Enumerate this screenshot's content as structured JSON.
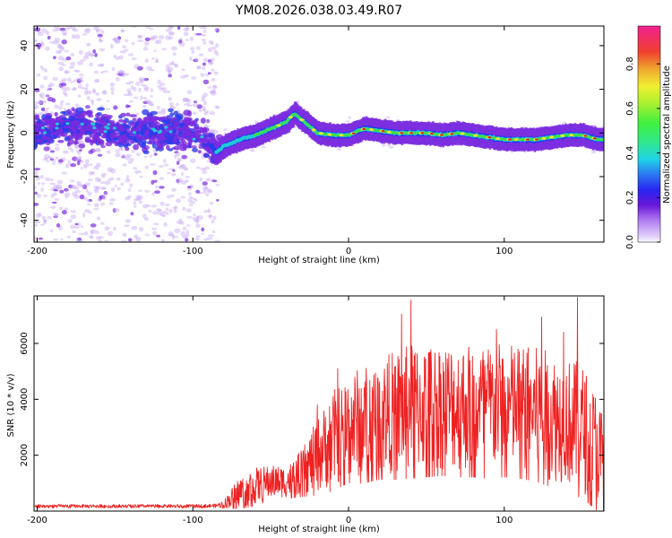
{
  "title": "YM08.2026.038.03.49.R07",
  "colors": {
    "line": "#ee2222",
    "axis": "#000000",
    "spec_violet": "#7a2be0",
    "spec_light": "#c8a8f4",
    "spec_cyan": "#21c8d8",
    "spec_green": "#40e040",
    "spec_yellow": "#e8e830",
    "spec_red": "#e02030",
    "spec_blue": "#2a3be8"
  },
  "chart_data": [
    {
      "type": "heatmap",
      "title": "",
      "xlabel": "Height of straight line (km)",
      "ylabel": "Frequency (Hz)",
      "xlim": [
        -202,
        164
      ],
      "ylim": [
        -50,
        49
      ],
      "xticks": [
        -200,
        -100,
        0,
        100
      ],
      "yticks": [
        -40,
        -20,
        0,
        20,
        40
      ],
      "colorbar": {
        "label": "Normalized spectral amplitude",
        "range": [
          0,
          0.97
        ],
        "ticks": [
          0.0,
          0.2,
          0.4,
          0.6,
          0.8
        ],
        "tick_labels": [
          "0.0",
          "0.2",
          "0.4",
          "0.6",
          "0.8"
        ]
      },
      "ridge": {
        "description": "dominant frequency ridge",
        "x": [
          -200,
          -180,
          -160,
          -140,
          -120,
          -100,
          -90,
          -85,
          -80,
          -70,
          -60,
          -50,
          -40,
          -35,
          -30,
          -20,
          -10,
          0,
          10,
          20,
          30,
          40,
          50,
          60,
          70,
          80,
          90,
          100,
          110,
          120,
          130,
          140,
          150,
          160
        ],
        "y": [
          1,
          3,
          2,
          0,
          1,
          0,
          -4,
          -9,
          -6,
          -3,
          -1,
          2,
          5,
          9,
          6,
          0,
          -1,
          -1,
          2,
          1,
          0,
          0,
          0,
          -1,
          0,
          -1,
          -2,
          -3,
          -3,
          -3,
          -2,
          -1,
          -1,
          -3
        ]
      }
    },
    {
      "type": "line",
      "title": "",
      "xlabel": "Height of straight line (km)",
      "ylabel": "SNR (10 * v/v)",
      "xlim": [
        -202,
        164
      ],
      "ylim": [
        0,
        7700
      ],
      "xticks": [
        -200,
        -100,
        0,
        100
      ],
      "yticks": [
        2000,
        4000,
        6000
      ],
      "series": [
        {
          "name": "SNR",
          "envelope_x": [
            -200,
            -150,
            -100,
            -85,
            -80,
            -70,
            -60,
            -50,
            -40,
            -30,
            -20,
            -10,
            0,
            10,
            20,
            30,
            40,
            50,
            60,
            70,
            80,
            90,
            100,
            110,
            120,
            130,
            140,
            150,
            160,
            164
          ],
          "envelope_mean": [
            180,
            180,
            180,
            190,
            250,
            700,
            900,
            1050,
            1050,
            1400,
            2000,
            2600,
            3100,
            3200,
            3450,
            3550,
            3700,
            3750,
            3800,
            3750,
            3750,
            3700,
            3750,
            3700,
            3600,
            3400,
            3200,
            3000,
            2200,
            1700
          ],
          "envelope_spread": [
            60,
            60,
            60,
            70,
            150,
            550,
            650,
            600,
            550,
            800,
            1300,
            1700,
            1900,
            2000,
            2100,
            2200,
            2300,
            2300,
            2300,
            2300,
            2300,
            2300,
            2300,
            2300,
            2300,
            2300,
            2300,
            2300,
            2000,
            1800
          ],
          "peaks": [
            {
              "x": 40,
              "y": 7550
            },
            {
              "x": 34,
              "y": 7050
            },
            {
              "x": 147,
              "y": 7650
            },
            {
              "x": 124,
              "y": 6950
            },
            {
              "x": 138,
              "y": 6400
            },
            {
              "x": -7,
              "y": 5100
            },
            {
              "x": -20,
              "y": 3800
            },
            {
              "x": 95,
              "y": 6500
            }
          ]
        }
      ]
    }
  ]
}
